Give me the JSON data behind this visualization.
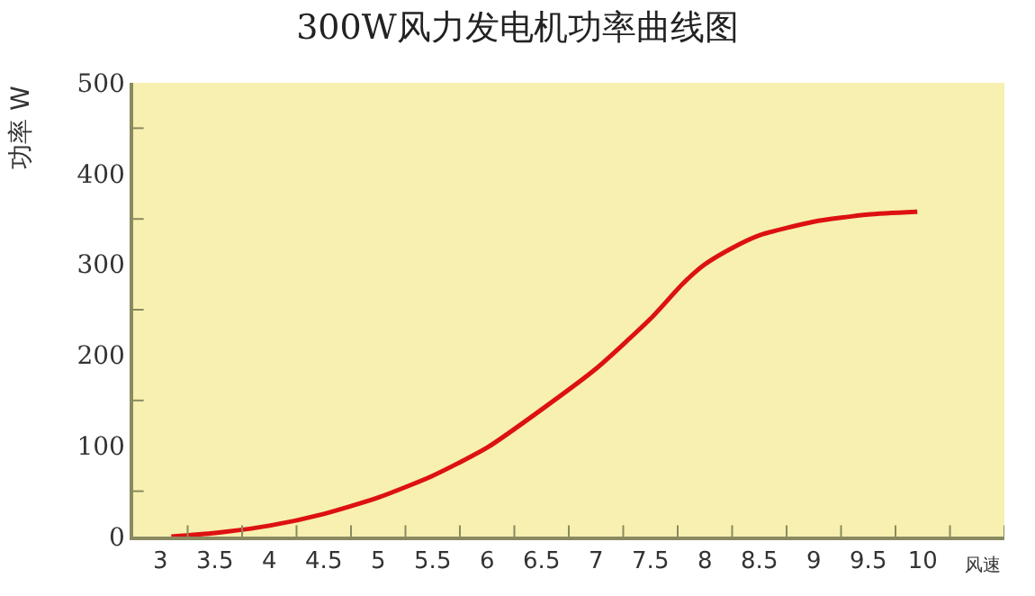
{
  "chart_data": {
    "type": "line",
    "title": "300W风力发电机功率曲线图",
    "xlabel": "风速",
    "ylabel": "功率 W",
    "x": [
      3.1,
      3.5,
      4,
      4.5,
      5,
      5.5,
      6,
      6.5,
      7,
      7.5,
      7.8,
      8,
      8.25,
      8.5,
      9,
      9.5,
      9.95
    ],
    "series": [
      {
        "color": "#dd1111",
        "values": [
          0,
          4,
          12,
          25,
          43,
          67,
          98,
          140,
          185,
          240,
          279,
          300,
          318,
          332,
          347,
          355,
          358
        ]
      }
    ],
    "xlim": [
      2.75,
      10.75
    ],
    "xticks": [
      3,
      3.5,
      4,
      4.5,
      5,
      5.5,
      6,
      6.5,
      7,
      7.5,
      8,
      8.5,
      9,
      9.5,
      10,
      {
        "value": 3.25,
        "label": null
      },
      {
        "value": 3.75,
        "label": null
      },
      {
        "value": 4.25,
        "label": null
      },
      {
        "value": 4.75,
        "label": null
      },
      {
        "value": 5.25,
        "label": null
      },
      {
        "value": 5.75,
        "label": null
      },
      {
        "value": 6.25,
        "label": null
      },
      {
        "value": 6.75,
        "label": null
      },
      {
        "value": 7.25,
        "label": null
      },
      {
        "value": 7.75,
        "label": null
      },
      {
        "value": 8.25,
        "label": null
      },
      {
        "value": 8.75,
        "label": null
      },
      {
        "value": 9.25,
        "label": null
      },
      {
        "value": 9.75,
        "label": null
      },
      {
        "value": 10.25,
        "label": null
      },
      {
        "value": 10.75,
        "label": null
      }
    ],
    "ylim": [
      0,
      500
    ],
    "yticks": [
      0,
      100,
      200,
      300,
      400,
      500,
      {
        "value": 50,
        "label": null
      },
      {
        "value": 150,
        "label": null
      },
      {
        "value": 250,
        "label": null
      },
      {
        "value": 350,
        "label": null
      },
      {
        "value": 450,
        "label": null
      }
    ],
    "grid": false,
    "marker": "none",
    "line_style": "solid"
  }
}
